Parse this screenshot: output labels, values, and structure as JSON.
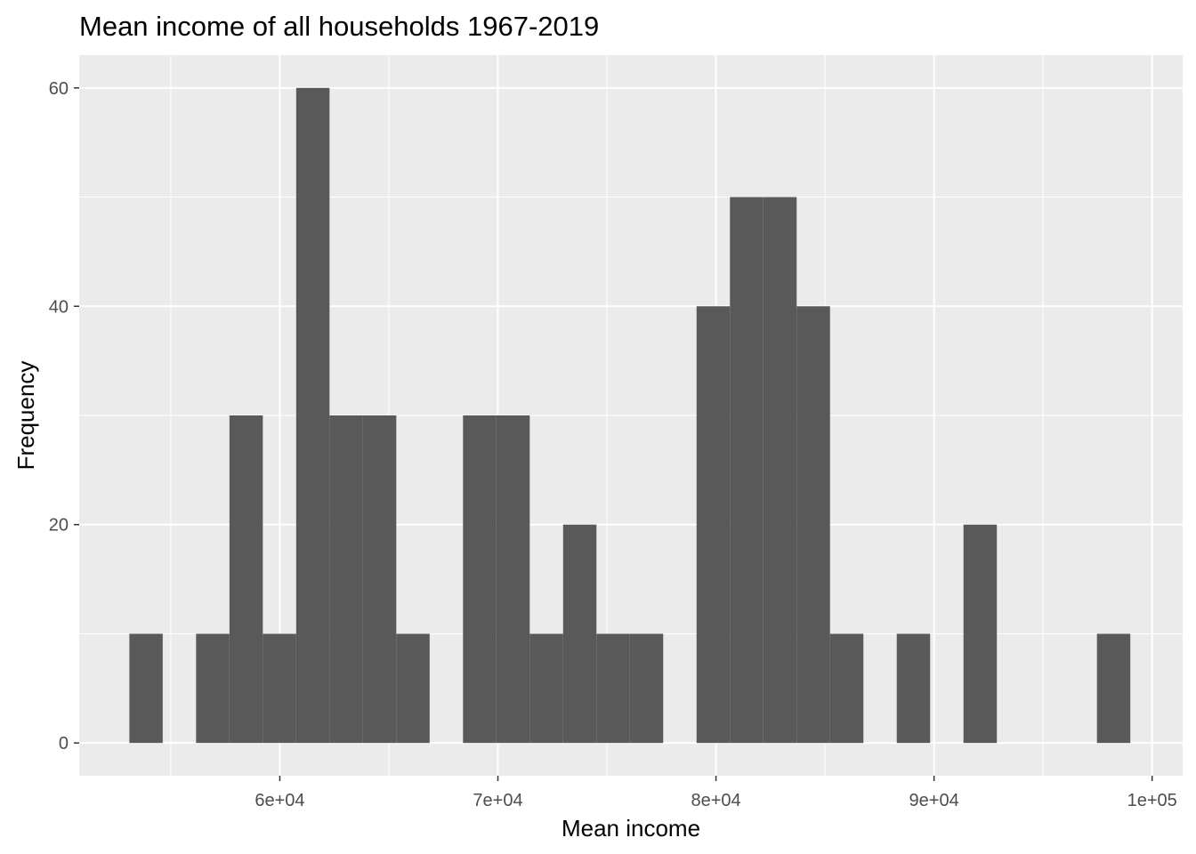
{
  "chart_data": {
    "type": "bar",
    "title": "Mean income of all households 1967-2019",
    "xlabel": "Mean income",
    "ylabel": "Frequency",
    "xlim": [
      50800,
      101400
    ],
    "ylim": [
      -3,
      63
    ],
    "x_ticks": [
      60000,
      70000,
      80000,
      90000,
      100000
    ],
    "x_tick_labels": [
      "6e+04",
      "7e+04",
      "8e+04",
      "9e+04",
      "1e+05"
    ],
    "x_minor_ticks": [
      55000,
      65000,
      75000,
      85000,
      95000
    ],
    "y_ticks": [
      0,
      20,
      40,
      60
    ],
    "y_tick_labels": [
      "0",
      "20",
      "40",
      "60"
    ],
    "y_minor_ticks": [
      10,
      30,
      50
    ],
    "grid": true,
    "bin_width": 1530,
    "bars": [
      {
        "x_start": 53100,
        "x_end": 54630,
        "count": 10
      },
      {
        "x_start": 54630,
        "x_end": 56160,
        "count": 0
      },
      {
        "x_start": 56160,
        "x_end": 57690,
        "count": 10
      },
      {
        "x_start": 57690,
        "x_end": 59220,
        "count": 30
      },
      {
        "x_start": 59220,
        "x_end": 60750,
        "count": 10
      },
      {
        "x_start": 60750,
        "x_end": 62280,
        "count": 60
      },
      {
        "x_start": 62280,
        "x_end": 63810,
        "count": 30
      },
      {
        "x_start": 63810,
        "x_end": 65340,
        "count": 30
      },
      {
        "x_start": 65340,
        "x_end": 66870,
        "count": 10
      },
      {
        "x_start": 66870,
        "x_end": 68400,
        "count": 0
      },
      {
        "x_start": 68400,
        "x_end": 69930,
        "count": 30
      },
      {
        "x_start": 69930,
        "x_end": 71460,
        "count": 30
      },
      {
        "x_start": 71460,
        "x_end": 72990,
        "count": 10
      },
      {
        "x_start": 72990,
        "x_end": 74520,
        "count": 20
      },
      {
        "x_start": 74520,
        "x_end": 76050,
        "count": 10
      },
      {
        "x_start": 76050,
        "x_end": 77580,
        "count": 10
      },
      {
        "x_start": 77580,
        "x_end": 79110,
        "count": 0
      },
      {
        "x_start": 79110,
        "x_end": 80640,
        "count": 40
      },
      {
        "x_start": 80640,
        "x_end": 82170,
        "count": 50
      },
      {
        "x_start": 82170,
        "x_end": 83700,
        "count": 50
      },
      {
        "x_start": 83700,
        "x_end": 85230,
        "count": 40
      },
      {
        "x_start": 85230,
        "x_end": 86760,
        "count": 10
      },
      {
        "x_start": 86760,
        "x_end": 88290,
        "count": 0
      },
      {
        "x_start": 88290,
        "x_end": 89820,
        "count": 10
      },
      {
        "x_start": 89820,
        "x_end": 91350,
        "count": 0
      },
      {
        "x_start": 91350,
        "x_end": 92880,
        "count": 20
      },
      {
        "x_start": 92880,
        "x_end": 94410,
        "count": 0
      },
      {
        "x_start": 94410,
        "x_end": 95940,
        "count": 0
      },
      {
        "x_start": 95940,
        "x_end": 97470,
        "count": 0
      },
      {
        "x_start": 97470,
        "x_end": 99000,
        "count": 10
      }
    ],
    "colors": {
      "panel_background": "#ebebeb",
      "grid_major": "#ffffff",
      "bar_fill": "#595959",
      "tick": "#333333",
      "tick_label": "#4d4d4d",
      "text": "#000000"
    }
  }
}
